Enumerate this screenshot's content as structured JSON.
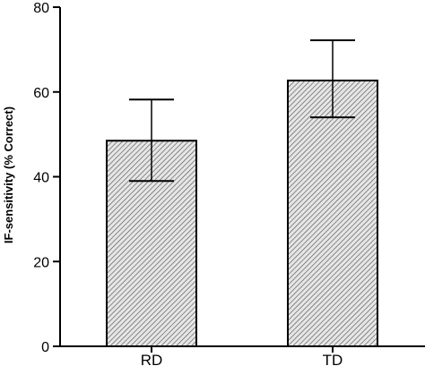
{
  "chart_data": {
    "type": "bar",
    "categories": [
      "RD",
      "TD"
    ],
    "values": [
      48.5,
      62.7
    ],
    "error_low": [
      39.0,
      54.0
    ],
    "error_high": [
      58.2,
      72.2
    ],
    "ylabel": "IF-sensitivity (% Correct)",
    "xlabel": "",
    "ylim": [
      0,
      80
    ],
    "yticks": [
      0,
      20,
      40,
      60,
      80
    ],
    "bar_fill": "dense-hatch",
    "grid": false,
    "legend": "none"
  },
  "colors": {
    "axis": "#000000",
    "bar_edge": "#000000",
    "hatch": "#555555",
    "background": "#ffffff"
  }
}
